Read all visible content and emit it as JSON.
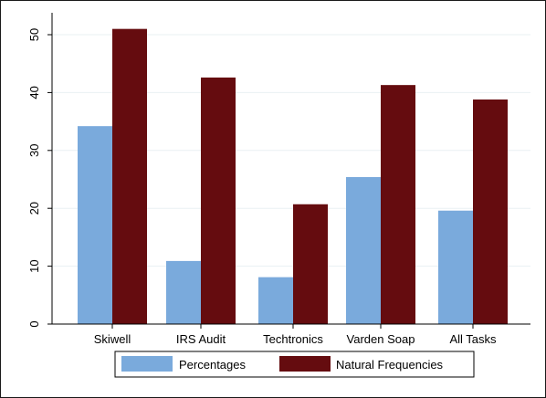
{
  "chart_data": {
    "type": "bar",
    "categories": [
      "Skiwell",
      "IRS Audit",
      "Techtronics",
      "Varden Soap",
      "All Tasks"
    ],
    "series": [
      {
        "name": "Percentages",
        "values": [
          34.2,
          10.9,
          8.1,
          25.4,
          19.6
        ],
        "color": "#7aaadc"
      },
      {
        "name": "Natural Frequencies",
        "values": [
          51.0,
          42.6,
          20.7,
          41.3,
          38.8
        ],
        "color": "#650c0f"
      }
    ],
    "yticks": [
      0,
      10,
      20,
      30,
      40,
      50
    ],
    "ylim": [
      0,
      52
    ],
    "grid": true,
    "legend_position": "bottom"
  }
}
